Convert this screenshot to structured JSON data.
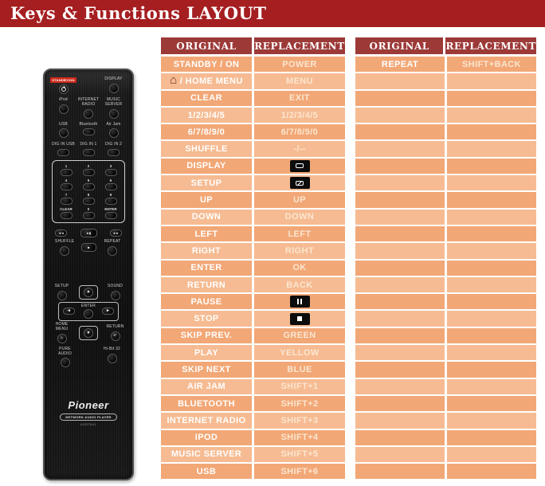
{
  "title": "Keys & Functions LAYOUT",
  "colors": {
    "titlebar": "#a51e20",
    "table_header": "#9c3a38",
    "row_dark": "#f2a776",
    "row_light": "#f6bb92",
    "original_text": "#ffffff",
    "replacement_text": "#fbe6d0"
  },
  "icons": {
    "up": "▲",
    "down": "▼",
    "left": "◄",
    "right": "►",
    "skip_prev": "◄◄",
    "play_pause": "►▮",
    "skip_next": "►►",
    "stop": "■",
    "home": "⌂",
    "return": "↵"
  },
  "tables": [
    {
      "headers": [
        "ORIGINAL",
        "REPLACEMENT"
      ],
      "rows": [
        {
          "o": "STANDBY / ON",
          "r": "POWER"
        },
        {
          "o": "/ HOME MENU",
          "o_icon": "home",
          "r": "MENU"
        },
        {
          "o": "CLEAR",
          "r": "EXIT"
        },
        {
          "o": "1/2/3/4/5",
          "r": "1/2/3/4/5"
        },
        {
          "o": "6/7/8/9/0",
          "r": "6/7/8/9/0"
        },
        {
          "o": "SHUFFLE",
          "r": "-/--"
        },
        {
          "o": "DISPLAY",
          "r": "",
          "r_icon": "display"
        },
        {
          "o": "SETUP",
          "r": "",
          "r_icon": "setup"
        },
        {
          "o": "UP",
          "r": "UP"
        },
        {
          "o": "DOWN",
          "r": "DOWN"
        },
        {
          "o": "LEFT",
          "r": "LEFT"
        },
        {
          "o": "RIGHT",
          "r": "RIGHT"
        },
        {
          "o": "ENTER",
          "r": "OK"
        },
        {
          "o": "RETURN",
          "r": "BACK"
        },
        {
          "o": "PAUSE",
          "r": "",
          "r_icon": "pause"
        },
        {
          "o": "STOP",
          "r": "",
          "r_icon": "stop"
        },
        {
          "o": "SKIP PREV.",
          "r": "GREEN"
        },
        {
          "o": "PLAY",
          "r": "YELLOW"
        },
        {
          "o": "SKIP NEXT",
          "r": "BLUE"
        },
        {
          "o": "AIR JAM",
          "r": "SHIFT+1"
        },
        {
          "o": "BLUETOOTH",
          "r": "SHIFT+2"
        },
        {
          "o": "INTERNET RADIO",
          "r": "SHIFT+3"
        },
        {
          "o": "IPOD",
          "r": "SHIFT+4"
        },
        {
          "o": "MUSIC SERVER",
          "r": "SHIFT+5"
        },
        {
          "o": "USB",
          "r": "SHIFT+6"
        }
      ],
      "empty_rows": 0
    },
    {
      "headers": [
        "ORIGINAL",
        "REPLACEMENT"
      ],
      "rows": [
        {
          "o": "REPEAT",
          "r": "SHIFT+BACK"
        }
      ],
      "empty_rows": 24
    }
  ],
  "remote": {
    "standby_label": "STANDBY/ON",
    "display_label": "DISPLAY",
    "sources": [
      "iPod",
      "INTERNET RADIO",
      "MUSIC SERVER"
    ],
    "inputs": [
      "USB",
      "Bluetooth",
      "Air Jam"
    ],
    "digins": [
      "DIG IN USB",
      "DIG IN 1",
      "DIG IN 2"
    ],
    "keypad": [
      [
        "1",
        "2",
        "3"
      ],
      [
        "4",
        "5",
        "6"
      ],
      [
        "7",
        "8",
        "9"
      ],
      [
        "CLEAR",
        "0",
        "ENTER"
      ]
    ],
    "shuffle": "SHUFFLE",
    "repeat": "REPEAT",
    "setup": "SETUP",
    "sound": "SOUND",
    "enter": "ENTER",
    "home_menu": "HOME MENU",
    "return": "RETURN",
    "pure_audio": "PURE AUDIO",
    "hi_bit": "Hi-Bit 32",
    "brand": "Pioneer",
    "badge": "NETWORK AUDIO PLAYER",
    "model": "AXD7641"
  }
}
